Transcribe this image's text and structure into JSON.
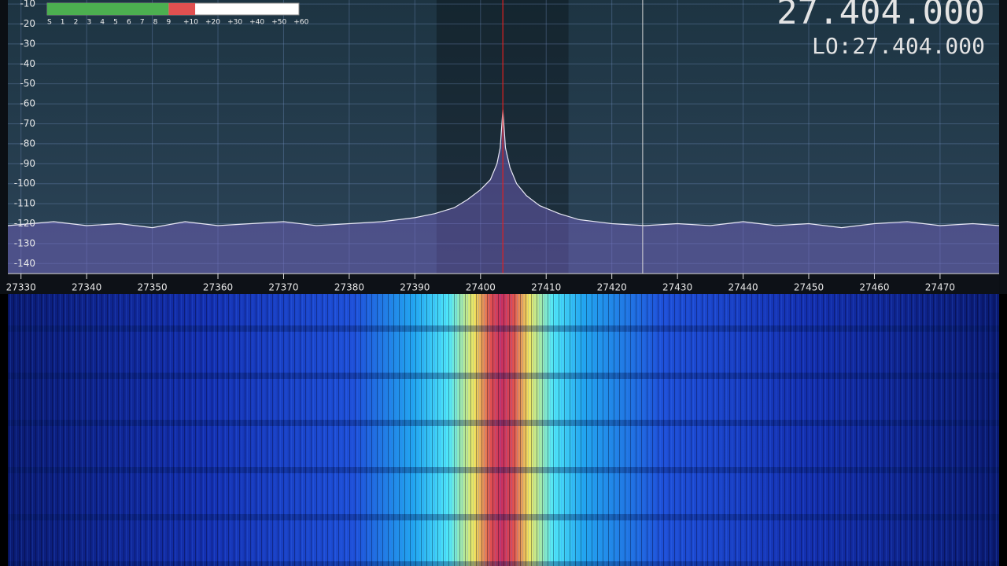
{
  "frequency": "27.404.000",
  "lo_label": "LO:",
  "lo_frequency": "27.404.000",
  "s_meter": {
    "scale": [
      -1,
      113
    ],
    "level": 66,
    "ticks": [
      {
        "value": 0,
        "label": "S"
      },
      {
        "value": 6,
        "label": "1"
      },
      {
        "value": 12,
        "label": "2"
      },
      {
        "value": 18,
        "label": "3"
      },
      {
        "value": 24,
        "label": "4"
      },
      {
        "value": 30,
        "label": "5"
      },
      {
        "value": 36,
        "label": "6"
      },
      {
        "value": 42,
        "label": "7"
      },
      {
        "value": 48,
        "label": "8"
      },
      {
        "value": 54,
        "label": "9"
      },
      {
        "value": 64,
        "label": "+10"
      },
      {
        "value": 74,
        "label": "+20"
      },
      {
        "value": 84,
        "label": "+30"
      },
      {
        "value": 94,
        "label": "+40"
      },
      {
        "value": 104,
        "label": "+50"
      },
      {
        "value": 114,
        "label": "+60"
      }
    ]
  },
  "chart_data": {
    "type": "line",
    "x": [
      27328,
      27335,
      27340,
      27345,
      27350,
      27355,
      27360,
      27365,
      27370,
      27375,
      27380,
      27385,
      27390,
      27393,
      27396,
      27398,
      27400,
      27401.5,
      27402.5,
      27403,
      27403.4,
      27403.8,
      27404.5,
      27405.5,
      27407,
      27409,
      27412,
      27415,
      27420,
      27425,
      27430,
      27435,
      27440,
      27445,
      27450,
      27455,
      27460,
      27465,
      27470,
      27475,
      27479
    ],
    "values": [
      -121,
      -119,
      -121,
      -120,
      -122,
      -119,
      -121,
      -120,
      -119,
      -121,
      -120,
      -119,
      -117,
      -115,
      -112,
      -108,
      -103,
      -98,
      -90,
      -82,
      -63,
      -82,
      -92,
      -100,
      -106,
      -111,
      -115,
      -118,
      -120,
      -121,
      -120,
      -121,
      -119,
      -121,
      -120,
      -122,
      -120,
      -119,
      -121,
      -120,
      -121
    ],
    "xlim": [
      27328,
      27479
    ],
    "ylim": [
      -145,
      -8
    ],
    "xticks": [
      27330,
      27340,
      27350,
      27360,
      27370,
      27380,
      27390,
      27400,
      27410,
      27420,
      27430,
      27440,
      27450,
      27460,
      27470
    ],
    "yticks": [
      -10,
      -20,
      -30,
      -40,
      -50,
      -60,
      -70,
      -80,
      -90,
      -100,
      -110,
      -120,
      -130,
      -140
    ],
    "grid": true,
    "color": "#e8e8f4",
    "vfo": 27403.4,
    "filter": [
      27393.3,
      27413.4
    ],
    "cursor": 27424.7
  }
}
